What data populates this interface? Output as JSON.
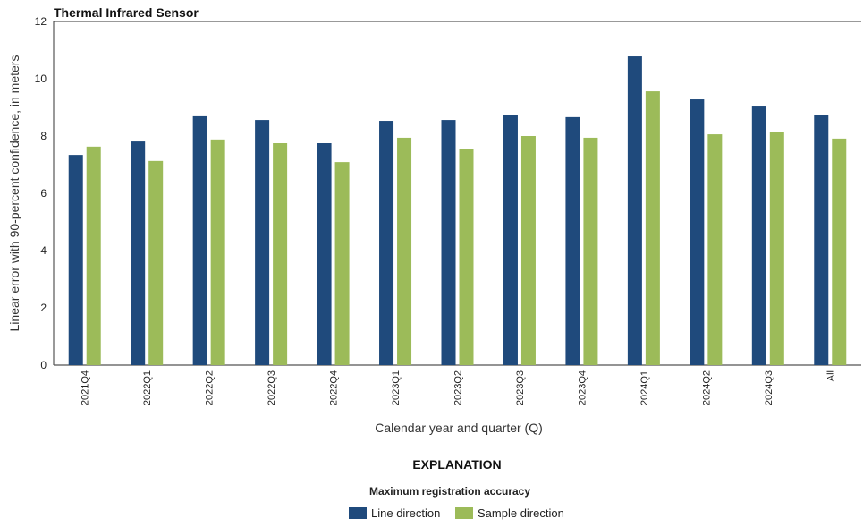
{
  "chart_data": {
    "type": "bar",
    "title": "Thermal Infrared Sensor",
    "xlabel": "Calendar year and quarter (Q)",
    "ylabel": "Linear error with 90-percent confidence, in meters",
    "ylim": [
      0,
      12
    ],
    "yticks": [
      "0",
      "2",
      "4",
      "6",
      "8",
      "10",
      "12"
    ],
    "grid": false,
    "categories": [
      "2021Q4",
      "2022Q1",
      "2022Q2",
      "2022Q3",
      "2022Q4",
      "2023Q1",
      "2023Q2",
      "2023Q3",
      "2023Q4",
      "2024Q1",
      "2024Q2",
      "2024Q3",
      "All"
    ],
    "series": [
      {
        "name": "Line direction",
        "color": "#1f4a7c",
        "values": [
          7.34,
          7.81,
          8.69,
          8.56,
          7.75,
          8.53,
          8.56,
          8.75,
          8.66,
          10.78,
          9.28,
          9.03,
          8.72
        ]
      },
      {
        "name": "Sample direction",
        "color": "#9cbb59",
        "values": [
          7.63,
          7.13,
          7.88,
          7.75,
          7.09,
          7.94,
          7.56,
          8.0,
          7.94,
          9.56,
          8.06,
          8.13,
          7.91
        ]
      }
    ],
    "legend": {
      "heading": "EXPLANATION",
      "subheading": "Maximum registration accuracy",
      "placement": "bottom-center"
    }
  }
}
